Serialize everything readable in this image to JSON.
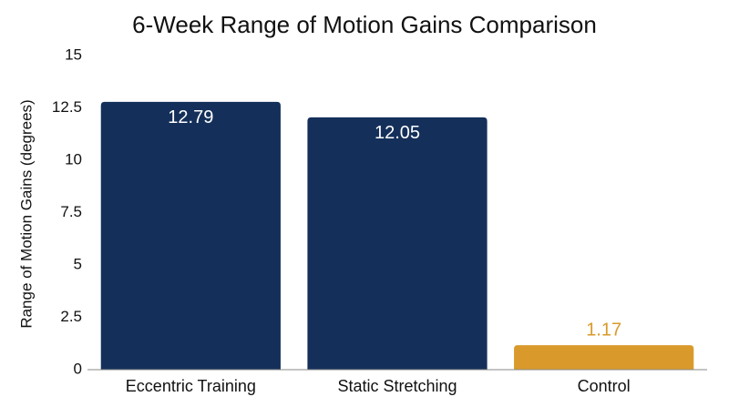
{
  "chart_data": {
    "type": "bar",
    "title": "6-Week Range of Motion Gains Comparison",
    "y_label": "Range of Motion Gains (degrees)",
    "categories": [
      "Eccentric Training",
      "Static Stretching",
      "Control"
    ],
    "values": [
      12.79,
      12.05,
      1.17
    ],
    "colors": [
      "#14305a",
      "#14305a",
      "#d99a2b"
    ],
    "ylim": [
      0,
      15
    ],
    "yticks": [
      0,
      2.5,
      5,
      7.5,
      10,
      12.5,
      15
    ],
    "grid": false
  }
}
